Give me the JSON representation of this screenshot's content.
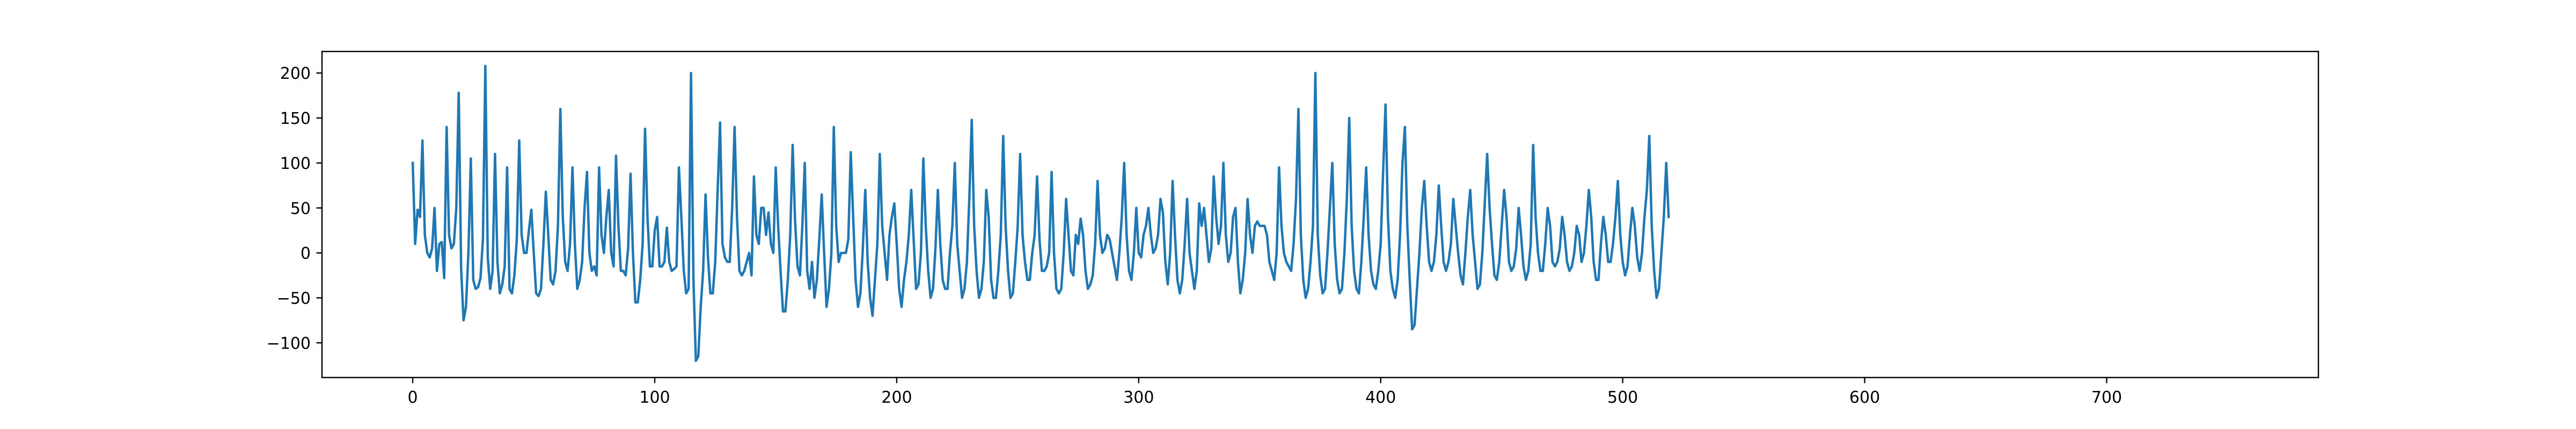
{
  "chart_data": {
    "type": "line",
    "title": "",
    "xlabel": "",
    "ylabel": "",
    "xlim": [
      -37.5,
      787.5
    ],
    "ylim": [
      -138.6,
      224.0
    ],
    "xticks": [
      0,
      100,
      200,
      300,
      400,
      500,
      600,
      700
    ],
    "yticks": [
      -100,
      -50,
      0,
      50,
      100,
      150,
      200
    ],
    "xtick_labels": [
      "0",
      "100",
      "200",
      "300",
      "400",
      "500",
      "600",
      "700"
    ],
    "ytick_labels": [
      "−100",
      "−50",
      "0",
      "50",
      "100",
      "150",
      "200"
    ],
    "grid": false,
    "legend": "none",
    "line_color": "#1f77b4",
    "series": [
      {
        "values": [
          100,
          10,
          48,
          40,
          125,
          20,
          0,
          -5,
          5,
          50,
          -20,
          10,
          12,
          -28,
          140,
          20,
          5,
          10,
          50,
          178,
          -18,
          -75,
          -60,
          0,
          105,
          -30,
          -40,
          -38,
          -28,
          15,
          208,
          -5,
          -40,
          -20,
          110,
          -10,
          -45,
          -35,
          -15,
          95,
          -40,
          -45,
          -25,
          15,
          125,
          20,
          0,
          0,
          25,
          48,
          0,
          -45,
          -48,
          -40,
          10,
          68,
          20,
          -30,
          -35,
          -20,
          30,
          160,
          40,
          -10,
          -20,
          10,
          95,
          10,
          -40,
          -30,
          -10,
          50,
          90,
          0,
          -20,
          -15,
          -25,
          95,
          20,
          0,
          40,
          70,
          0,
          -15,
          108,
          30,
          -20,
          -20,
          -25,
          5,
          88,
          0,
          -55,
          -55,
          -30,
          10,
          138,
          40,
          -15,
          -15,
          25,
          40,
          -15,
          -15,
          -10,
          28,
          -10,
          -20,
          -18,
          -15,
          95,
          40,
          -20,
          -45,
          -40,
          200,
          -30,
          -120,
          -115,
          -60,
          -20,
          65,
          -5,
          -45,
          -45,
          -10,
          70,
          145,
          10,
          -5,
          -10,
          -10,
          50,
          140,
          40,
          -20,
          -25,
          -20,
          -10,
          0,
          -25,
          85,
          20,
          10,
          50,
          50,
          20,
          45,
          10,
          0,
          95,
          30,
          -20,
          -65,
          -65,
          -30,
          20,
          120,
          35,
          -15,
          -25,
          30,
          100,
          -20,
          -40,
          -10,
          -50,
          -30,
          15,
          65,
          0,
          -60,
          -40,
          0,
          140,
          30,
          -10,
          0,
          0,
          0,
          15,
          112,
          40,
          -30,
          -60,
          -45,
          5,
          70,
          -10,
          -50,
          -70,
          -30,
          10,
          110,
          30,
          0,
          -30,
          20,
          40,
          55,
          10,
          -40,
          -60,
          -30,
          -10,
          20,
          70,
          15,
          -40,
          -35,
          0,
          105,
          30,
          -20,
          -50,
          -40,
          5,
          70,
          10,
          -30,
          -40,
          -40,
          0,
          30,
          100,
          10,
          -20,
          -50,
          -40,
          -10,
          60,
          148,
          30,
          -20,
          -50,
          -40,
          -10,
          70,
          40,
          -30,
          -50,
          -50,
          -20,
          20,
          130,
          30,
          -20,
          -50,
          -45,
          -10,
          30,
          110,
          20,
          -10,
          -30,
          -30,
          0,
          20,
          85,
          15,
          -20,
          -20,
          -15,
          0,
          90,
          0,
          -40,
          -45,
          -40,
          0,
          60,
          20,
          -20,
          -25,
          20,
          10,
          38,
          20,
          -20,
          -40,
          -35,
          -25,
          10,
          80,
          20,
          0,
          5,
          20,
          15,
          0,
          -15,
          -30,
          0,
          40,
          100,
          20,
          -20,
          -30,
          0,
          50,
          0,
          -5,
          20,
          30,
          50,
          20,
          0,
          5,
          20,
          60
        ]
      },
      {
        "values": [
          45,
          -10,
          -35,
          0,
          80,
          20,
          -30,
          -45,
          -30,
          10,
          60,
          0,
          -20,
          -40,
          -20,
          55,
          30,
          50,
          20,
          -10,
          5,
          85,
          40,
          10,
          30,
          100,
          20,
          -10,
          0,
          40,
          50,
          -10,
          -45,
          -30,
          0,
          60,
          20,
          0,
          30,
          35,
          30,
          30,
          30,
          20,
          -10,
          -20,
          -30,
          0,
          95,
          30,
          0,
          -10,
          -15,
          -20,
          10,
          60,
          160,
          20,
          -30,
          -50,
          -40,
          -10,
          30,
          200,
          20,
          -25,
          -45,
          -40,
          0,
          50,
          100,
          10,
          -30,
          -45,
          -40,
          0,
          60,
          150,
          30,
          -20,
          -40,
          -45,
          -10,
          40,
          95,
          20,
          -20,
          -35,
          -40,
          -20,
          10,
          90,
          165,
          40,
          -20,
          -40,
          -50,
          -30,
          20,
          100,
          140,
          30,
          -30,
          -85,
          -80,
          -40,
          0,
          50,
          80,
          30,
          -10,
          -20,
          -10,
          20,
          75,
          30,
          -10,
          -20,
          -10,
          10,
          60,
          30,
          0,
          -25,
          -35,
          0,
          40,
          70,
          20,
          -10,
          -40,
          -35,
          0,
          55,
          110,
          50,
          10,
          -25,
          -30,
          -10,
          30,
          70,
          40,
          -10,
          -20,
          -15,
          5,
          50,
          20,
          -15,
          -30,
          -20,
          10,
          120,
          40,
          0,
          -20,
          -20,
          10,
          50,
          30,
          -10,
          -15,
          -10,
          5,
          40,
          20,
          -10,
          -20,
          -15,
          0,
          30,
          20,
          -10,
          0,
          30,
          70,
          40,
          -10,
          -30,
          -30,
          10,
          40,
          20,
          -10,
          -10,
          10,
          40,
          80,
          20,
          -10,
          -25,
          -15,
          20,
          50,
          30,
          -5,
          -20,
          0,
          40,
          70,
          130,
          30,
          -20,
          -50,
          -40,
          0,
          40,
          100,
          40
        ]
      }
    ]
  }
}
